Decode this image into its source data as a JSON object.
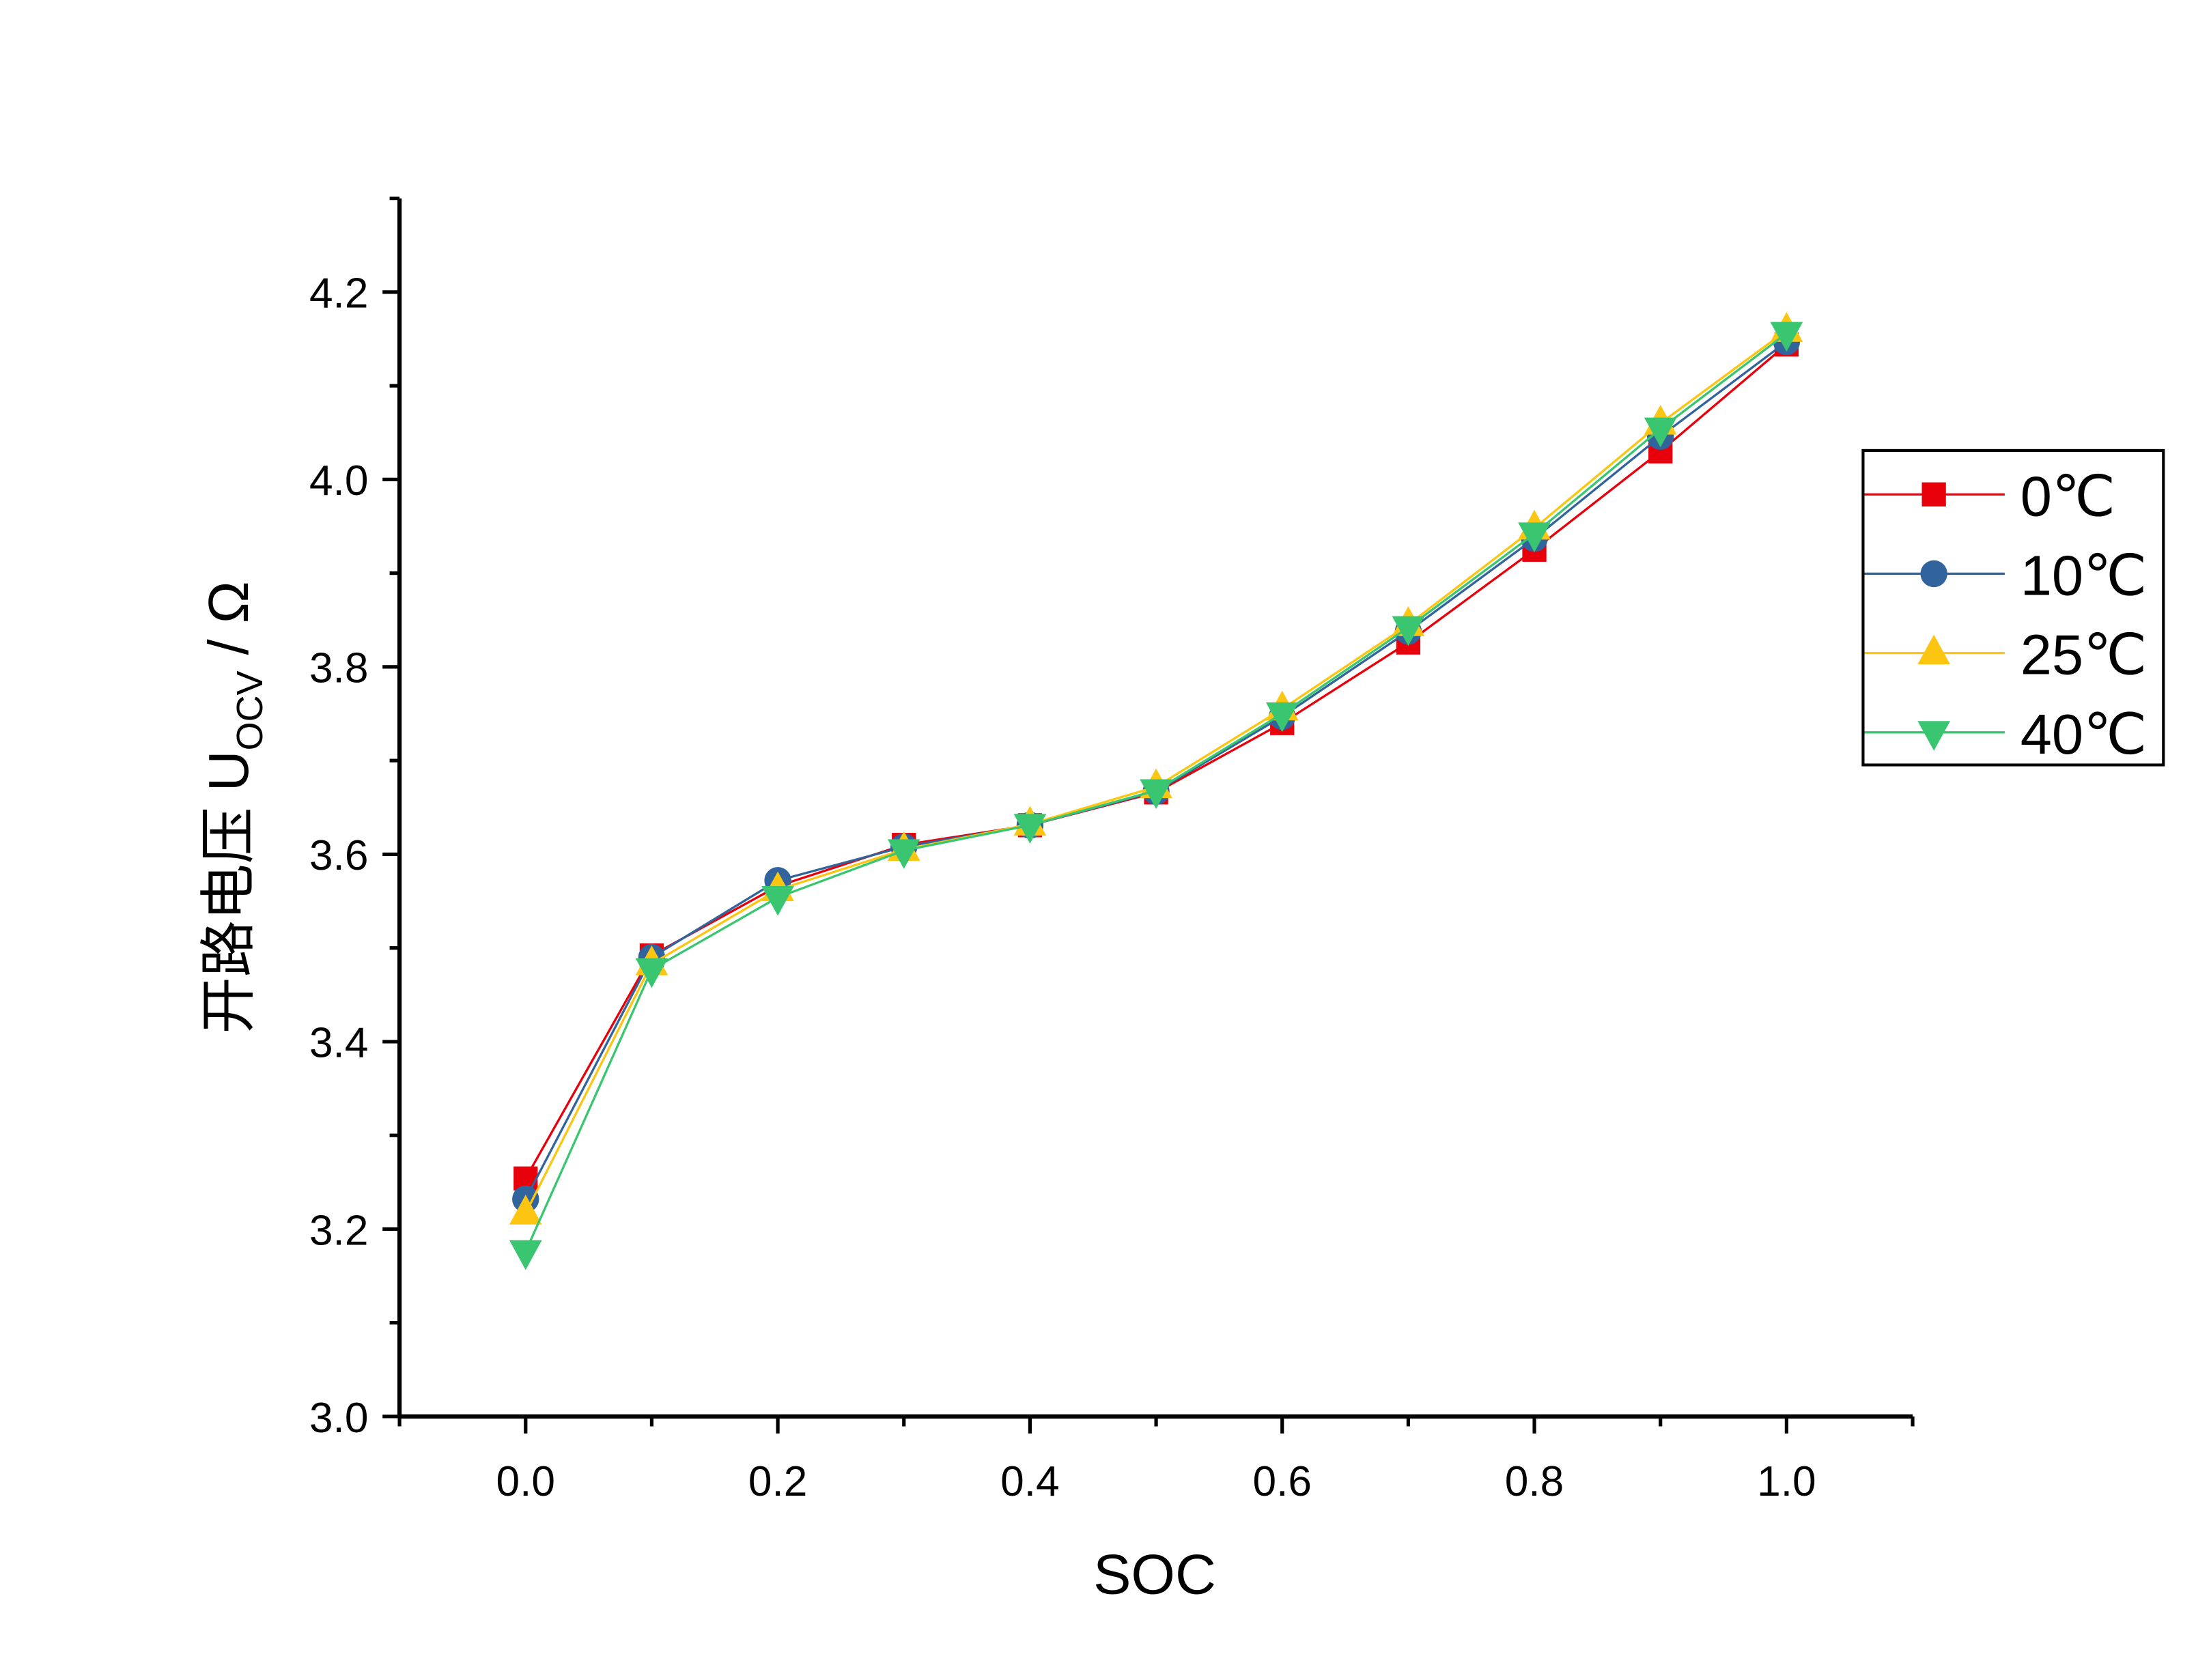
{
  "chart_data": {
    "type": "line",
    "xlabel": "SOC",
    "ylabel_parts": {
      "prefix": "开路电压 U",
      "subscript": "OCV",
      "suffix": " / Ω"
    },
    "xlim": [
      -0.1,
      1.1
    ],
    "ylim": [
      3.0,
      4.3
    ],
    "x_ticks": [
      "0.0",
      "0.2",
      "0.4",
      "0.6",
      "0.8",
      "1.0"
    ],
    "y_ticks": [
      "3.0",
      "3.2",
      "3.4",
      "3.6",
      "3.8",
      "4.0",
      "4.2"
    ],
    "grid": false,
    "legend_position": "right",
    "x": [
      0.0,
      0.1,
      0.2,
      0.3,
      0.4,
      0.5,
      0.6,
      0.7,
      0.8,
      0.9,
      1.0
    ],
    "series": [
      {
        "name": "0℃",
        "color": "#e8000b",
        "marker": "square",
        "values": [
          3.254,
          3.492,
          3.566,
          3.61,
          3.631,
          3.666,
          3.74,
          3.826,
          3.925,
          4.03,
          4.144
        ]
      },
      {
        "name": "10℃",
        "color": "#31639c",
        "marker": "circle",
        "values": [
          3.232,
          3.49,
          3.572,
          3.608,
          3.631,
          3.667,
          3.747,
          3.838,
          3.937,
          4.046,
          4.147
        ]
      },
      {
        "name": "25℃",
        "color": "#fcc512",
        "marker": "triangle-up",
        "values": [
          3.217,
          3.483,
          3.562,
          3.605,
          3.632,
          3.672,
          3.755,
          3.845,
          3.948,
          4.06,
          4.159
        ]
      },
      {
        "name": "40℃",
        "color": "#3ac671",
        "marker": "triangle-down",
        "values": [
          3.176,
          3.477,
          3.554,
          3.604,
          3.631,
          3.668,
          3.75,
          3.842,
          3.942,
          4.054,
          4.156
        ]
      }
    ]
  }
}
